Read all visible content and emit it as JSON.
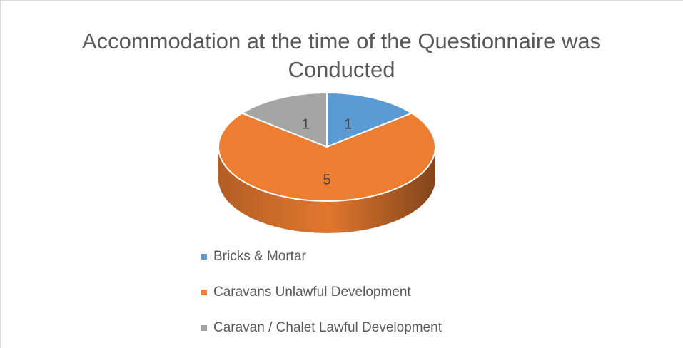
{
  "chart_data": {
    "type": "pie",
    "title": "Accommodation at the time of the Questionnaire was Conducted",
    "categories": [
      "Bricks & Mortar",
      "Caravans Unlawful Development",
      "Caravan / Chalet Lawful Development"
    ],
    "values": [
      1,
      5,
      1
    ],
    "colors": [
      "#5b9bd5",
      "#ed7d31",
      "#a5a5a5"
    ],
    "legend": "bottom"
  }
}
